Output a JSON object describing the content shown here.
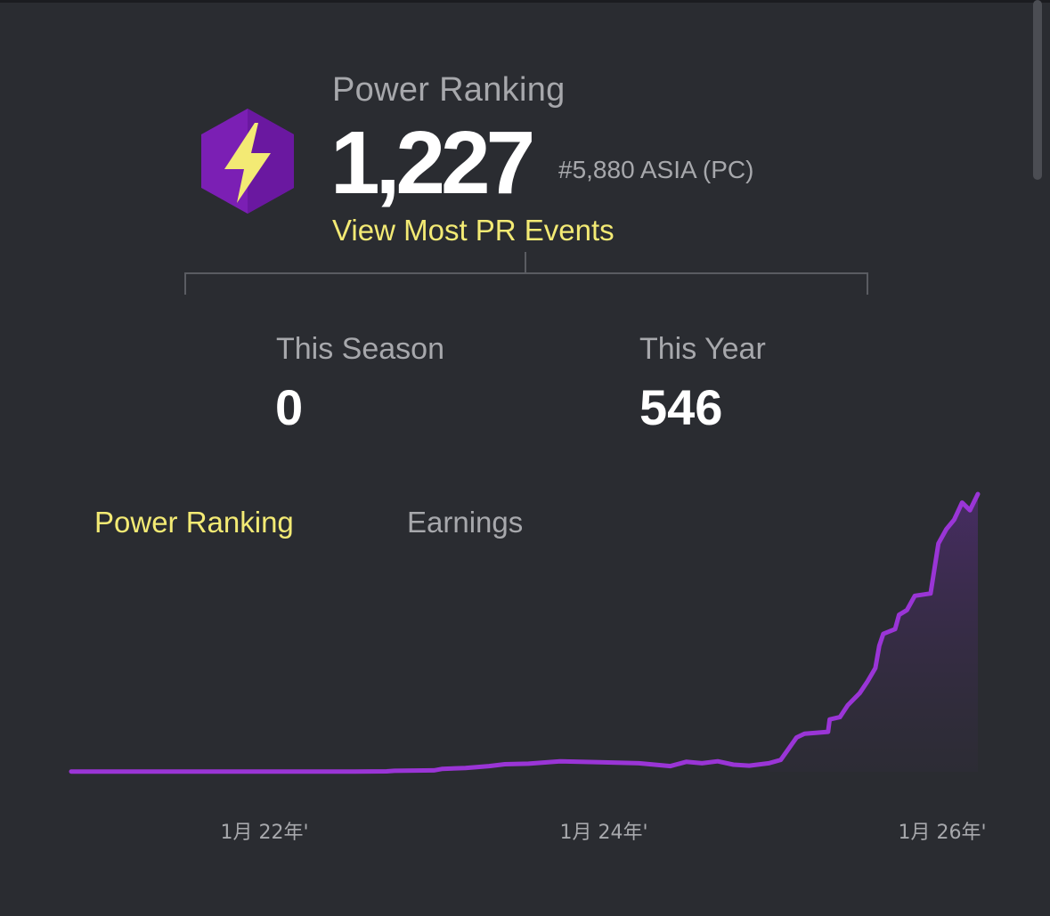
{
  "colors": {
    "background": "#2a2c31",
    "accent_yellow": "#f3ea74",
    "text_muted": "#a7a8ac",
    "line_purple": "#9a35d6",
    "icon_purple": "#7b1fb4"
  },
  "header": {
    "icon": "lightning-bolt-hexagon-icon",
    "title": "Power Ranking",
    "value": "1,227",
    "rank": "#5,880 ASIA (PC)",
    "link_label": "View Most PR Events"
  },
  "stats": [
    {
      "label": "This Season",
      "value": "0"
    },
    {
      "label": "This Year",
      "value": "546"
    }
  ],
  "tabs": [
    {
      "label": "Power Ranking",
      "active": true
    },
    {
      "label": "Earnings",
      "active": false
    }
  ],
  "chart_data": {
    "type": "area",
    "x_tick_labels": [
      "1月 22年'",
      "1月 24年'",
      "1月 26年'"
    ],
    "series": [
      {
        "values": [
          [
            0.0,
            0.5
          ],
          [
            0.36,
            0.5
          ],
          [
            0.4,
            1
          ],
          [
            0.41,
            2
          ],
          [
            0.46,
            3
          ],
          [
            0.47,
            6
          ],
          [
            0.5,
            8
          ],
          [
            0.53,
            12
          ],
          [
            0.55,
            16
          ],
          [
            0.58,
            17
          ],
          [
            0.62,
            22
          ],
          [
            0.67,
            20
          ],
          [
            0.72,
            18
          ],
          [
            0.76,
            12
          ],
          [
            0.78,
            21
          ],
          [
            0.8,
            18
          ],
          [
            0.82,
            22
          ],
          [
            0.84,
            15
          ],
          [
            0.86,
            13
          ],
          [
            0.885,
            18
          ],
          [
            0.9,
            25
          ],
          [
            0.92,
            72
          ],
          [
            0.93,
            80
          ],
          [
            0.96,
            84
          ],
          [
            0.962,
            110
          ],
          [
            0.975,
            115
          ],
          [
            0.985,
            140
          ],
          [
            1.0,
            165
          ],
          [
            1.01,
            190
          ],
          [
            1.02,
            218
          ],
          [
            1.025,
            265
          ],
          [
            1.03,
            290
          ],
          [
            1.045,
            300
          ],
          [
            1.05,
            330
          ],
          [
            1.06,
            340
          ],
          [
            1.07,
            370
          ],
          [
            1.09,
            375
          ],
          [
            1.1,
            480
          ],
          [
            1.11,
            510
          ],
          [
            1.12,
            530
          ],
          [
            1.13,
            566
          ],
          [
            1.14,
            550
          ],
          [
            1.15,
            584
          ]
        ]
      }
    ],
    "grid": false,
    "legend": false
  }
}
